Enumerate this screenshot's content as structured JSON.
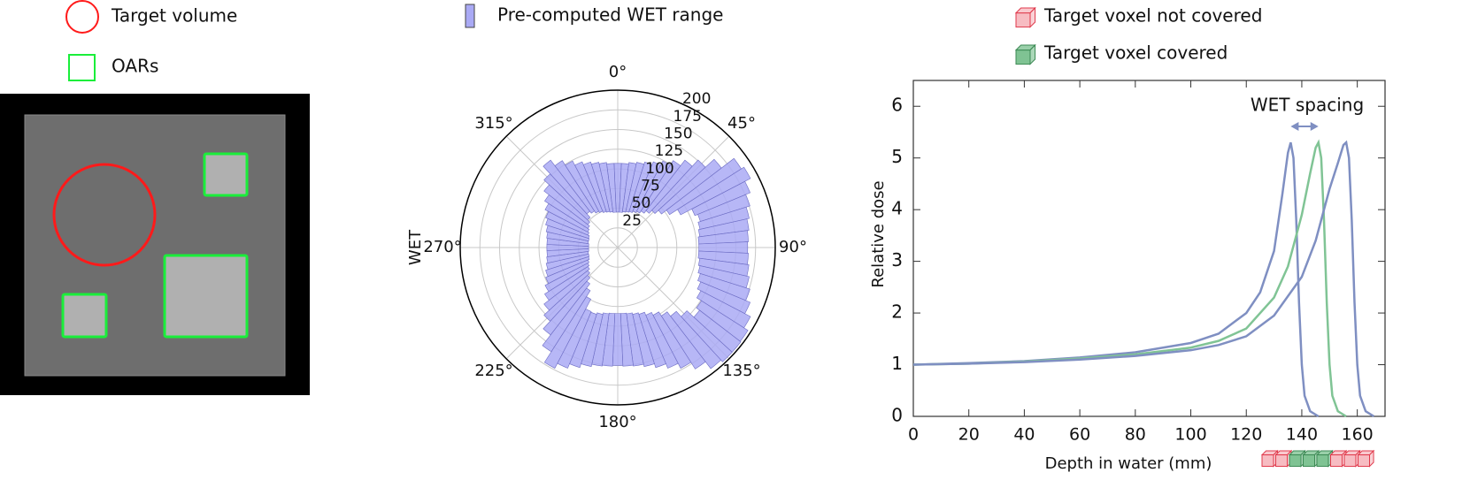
{
  "chart_data": [
    {
      "type": "phantom",
      "legend": [
        {
          "name": "Target volume",
          "color": "#ff1a1a"
        },
        {
          "name": "OARs",
          "color": "#1aee3a"
        }
      ]
    },
    {
      "type": "polar",
      "axis_label": "WET",
      "grid": true,
      "x": [
        0,
        5,
        10,
        15,
        20,
        25,
        30,
        35,
        40,
        45,
        50,
        55,
        60,
        65,
        70,
        75,
        80,
        85,
        90,
        95,
        100,
        105,
        110,
        115,
        120,
        125,
        130,
        135,
        140,
        145,
        150,
        155,
        160,
        165,
        170,
        175,
        180,
        185,
        190,
        195,
        200,
        205,
        210,
        215,
        220,
        225,
        230,
        235,
        240,
        245,
        250,
        255,
        260,
        265,
        270,
        275,
        280,
        285,
        290,
        295,
        300,
        305,
        310,
        315,
        320,
        325,
        330,
        335,
        340,
        345,
        350,
        355
      ],
      "xticks": [
        {
          "value": 0,
          "label": "0°"
        },
        {
          "value": 45,
          "label": "45°"
        },
        {
          "value": 90,
          "label": "90°"
        },
        {
          "value": 135,
          "label": "135°"
        },
        {
          "value": 180,
          "label": "180°"
        },
        {
          "value": 225,
          "label": "225°"
        },
        {
          "value": 270,
          "label": "270°"
        },
        {
          "value": 315,
          "label": "315°"
        }
      ],
      "ylim": [
        0,
        200
      ],
      "yticks": [
        25,
        50,
        75,
        100,
        125,
        150,
        175,
        200
      ],
      "series": [
        {
          "name": "Pre-computed WET range",
          "color": "#aaaaf5",
          "bases": [
            45,
            45,
            46,
            47,
            48,
            50,
            52,
            55,
            59,
            64,
            70,
            78,
            90,
            106,
            110,
            107,
            105,
            103,
            103,
            103,
            105,
            107,
            110,
            114,
            119,
            126,
            131,
            119,
            110,
            103,
            97,
            93,
            89,
            87,
            85,
            84,
            84,
            84,
            85,
            87,
            89,
            88,
            74,
            65,
            58,
            52,
            48,
            45,
            43,
            41,
            39,
            38,
            38,
            37,
            37,
            37,
            38,
            38,
            39,
            41,
            43,
            45,
            48,
            52,
            58,
            55,
            52,
            50,
            48,
            47,
            46,
            45
          ],
          "values": [
            107,
            107,
            109,
            111,
            114,
            118,
            124,
            131,
            140,
            151,
            166,
            186,
            190,
            182,
            176,
            171,
            168,
            166,
            165,
            166,
            168,
            171,
            176,
            182,
            190,
            196,
            197,
            197,
            194,
            183,
            173,
            166,
            160,
            155,
            152,
            151,
            150,
            151,
            152,
            155,
            160,
            166,
            173,
            157,
            140,
            127,
            118,
            110,
            104,
            99,
            96,
            93,
            91,
            90,
            90,
            90,
            91,
            93,
            96,
            99,
            104,
            110,
            118,
            127,
            140,
            131,
            124,
            118,
            114,
            111,
            109,
            107
          ]
        }
      ]
    },
    {
      "type": "line",
      "xlabel": "Depth in water (mm)",
      "ylabel": "Relative dose",
      "annotation": "WET spacing",
      "xlim": [
        0,
        170
      ],
      "ylim": [
        0,
        6.5
      ],
      "xticks": [
        0,
        20,
        40,
        60,
        80,
        100,
        120,
        140,
        160
      ],
      "yticks": [
        0,
        1,
        2,
        3,
        4,
        5,
        6
      ],
      "series": [
        {
          "color": "#7f8fc2",
          "x": [
            0,
            20,
            40,
            60,
            80,
            100,
            110,
            120,
            125,
            130,
            133,
            135,
            136,
            137,
            138,
            139,
            140,
            141,
            143,
            146
          ],
          "values": [
            1.0,
            1.03,
            1.07,
            1.14,
            1.24,
            1.42,
            1.6,
            2.0,
            2.4,
            3.2,
            4.3,
            5.1,
            5.3,
            5.0,
            3.8,
            2.2,
            1.0,
            0.4,
            0.1,
            0
          ]
        },
        {
          "color": "#80c495",
          "x": [
            0,
            20,
            40,
            60,
            80,
            100,
            110,
            120,
            130,
            135,
            140,
            143,
            145,
            146,
            147,
            148,
            149,
            150,
            151,
            153,
            156
          ],
          "values": [
            1.0,
            1.02,
            1.06,
            1.12,
            1.2,
            1.33,
            1.46,
            1.7,
            2.3,
            2.9,
            3.9,
            4.7,
            5.2,
            5.3,
            5.0,
            3.8,
            2.2,
            1.0,
            0.4,
            0.1,
            0
          ]
        },
        {
          "color": "#7f8fc2",
          "x": [
            0,
            20,
            40,
            60,
            80,
            100,
            110,
            120,
            130,
            140,
            145,
            150,
            153,
            155,
            156,
            157,
            158,
            159,
            160,
            161,
            163,
            166
          ],
          "values": [
            1.0,
            1.02,
            1.05,
            1.1,
            1.17,
            1.28,
            1.38,
            1.55,
            1.95,
            2.7,
            3.4,
            4.4,
            4.9,
            5.25,
            5.3,
            5.0,
            3.8,
            2.2,
            1.0,
            0.4,
            0.1,
            0
          ]
        }
      ],
      "legend": [
        {
          "name": "Target voxel not covered",
          "color": "#f7bcc2",
          "edgecolor": "#e03a4c"
        },
        {
          "name": "Target voxel covered",
          "color": "#7fc393",
          "edgecolor": "#3d8a55"
        }
      ]
    }
  ]
}
